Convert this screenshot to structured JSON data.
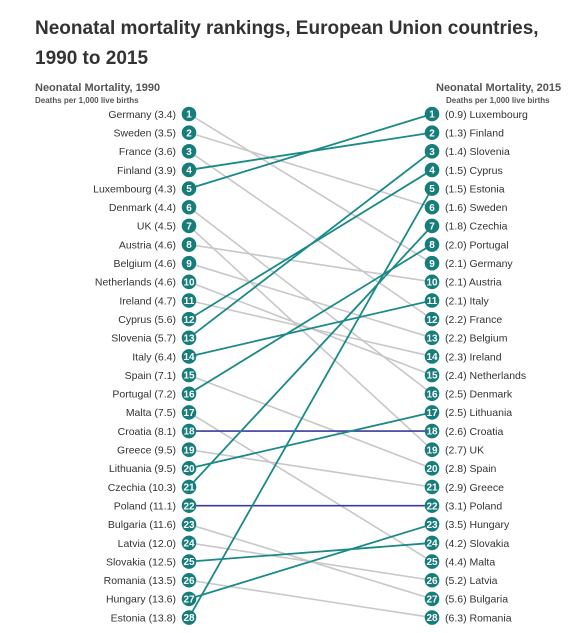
{
  "chart_data": {
    "type": "slope",
    "title": "Neonatal mortality rankings, European Union countries, 1990 to 2015",
    "left_axis": {
      "label": "Neonatal Mortality, 1990",
      "sublabel": "Deaths per 1,000 live births"
    },
    "right_axis": {
      "label": "Neonatal Mortality, 2015",
      "sublabel": "Deaths per 1,000 live births"
    },
    "colors": {
      "node": "#167d7a",
      "improved": "#1a8a86",
      "worsened": "#c8c8c8",
      "unchanged": "#3c3c9c"
    },
    "left": [
      {
        "rank": 1,
        "country": "Germany",
        "value": 3.4,
        "label": "Germany (3.4)"
      },
      {
        "rank": 2,
        "country": "Sweden",
        "value": 3.5,
        "label": "Sweden (3.5)"
      },
      {
        "rank": 3,
        "country": "France",
        "value": 3.6,
        "label": "France (3.6)"
      },
      {
        "rank": 4,
        "country": "Finland",
        "value": 3.9,
        "label": "Finland (3.9)"
      },
      {
        "rank": 5,
        "country": "Luxembourg",
        "value": 4.3,
        "label": "Luxembourg (4.3)"
      },
      {
        "rank": 6,
        "country": "Denmark",
        "value": 4.4,
        "label": "Denmark (4.4)"
      },
      {
        "rank": 7,
        "country": "UK",
        "value": 4.5,
        "label": "UK (4.5)"
      },
      {
        "rank": 8,
        "country": "Austria",
        "value": 4.6,
        "label": "Austria (4.6)"
      },
      {
        "rank": 9,
        "country": "Belgium",
        "value": 4.6,
        "label": "Belgium (4.6)"
      },
      {
        "rank": 10,
        "country": "Netherlands",
        "value": 4.6,
        "label": "Netherlands (4.6)"
      },
      {
        "rank": 11,
        "country": "Ireland",
        "value": 4.7,
        "label": "Ireland (4.7)"
      },
      {
        "rank": 12,
        "country": "Cyprus",
        "value": 5.6,
        "label": "Cyprus (5.6)"
      },
      {
        "rank": 13,
        "country": "Slovenia",
        "value": 5.7,
        "label": "Slovenia (5.7)"
      },
      {
        "rank": 14,
        "country": "Italy",
        "value": 6.4,
        "label": "Italy (6.4)"
      },
      {
        "rank": 15,
        "country": "Spain",
        "value": 7.1,
        "label": "Spain (7.1)"
      },
      {
        "rank": 16,
        "country": "Portugal",
        "value": 7.2,
        "label": "Portugal (7.2)"
      },
      {
        "rank": 17,
        "country": "Malta",
        "value": 7.5,
        "label": "Malta (7.5)"
      },
      {
        "rank": 18,
        "country": "Croatia",
        "value": 8.1,
        "label": "Croatia (8.1)"
      },
      {
        "rank": 19,
        "country": "Greece",
        "value": 9.5,
        "label": "Greece (9.5)"
      },
      {
        "rank": 20,
        "country": "Lithuania",
        "value": 9.5,
        "label": "Lithuania (9.5)"
      },
      {
        "rank": 21,
        "country": "Czechia",
        "value": 10.3,
        "label": "Czechia (10.3)"
      },
      {
        "rank": 22,
        "country": "Poland",
        "value": 11.1,
        "label": "Poland (11.1)"
      },
      {
        "rank": 23,
        "country": "Bulgaria",
        "value": 11.6,
        "label": "Bulgaria (11.6)"
      },
      {
        "rank": 24,
        "country": "Latvia",
        "value": 12.0,
        "label": "Latvia (12.0)"
      },
      {
        "rank": 25,
        "country": "Slovakia",
        "value": 12.5,
        "label": "Slovakia (12.5)"
      },
      {
        "rank": 26,
        "country": "Romania",
        "value": 13.5,
        "label": "Romania (13.5)"
      },
      {
        "rank": 27,
        "country": "Hungary",
        "value": 13.6,
        "label": "Hungary (13.6)"
      },
      {
        "rank": 28,
        "country": "Estonia",
        "value": 13.8,
        "label": "Estonia (13.8)"
      }
    ],
    "right": [
      {
        "rank": 1,
        "country": "Luxembourg",
        "value": 0.9,
        "label": "(0.9) Luxembourg"
      },
      {
        "rank": 2,
        "country": "Finland",
        "value": 1.3,
        "label": "(1.3) Finland"
      },
      {
        "rank": 3,
        "country": "Slovenia",
        "value": 1.4,
        "label": "(1.4) Slovenia"
      },
      {
        "rank": 4,
        "country": "Cyprus",
        "value": 1.5,
        "label": "(1.5) Cyprus"
      },
      {
        "rank": 5,
        "country": "Estonia",
        "value": 1.5,
        "label": "(1.5) Estonia"
      },
      {
        "rank": 6,
        "country": "Sweden",
        "value": 1.6,
        "label": "(1.6) Sweden"
      },
      {
        "rank": 7,
        "country": "Czechia",
        "value": 1.8,
        "label": "(1.8) Czechia"
      },
      {
        "rank": 8,
        "country": "Portugal",
        "value": 2.0,
        "label": "(2.0) Portugal"
      },
      {
        "rank": 9,
        "country": "Germany",
        "value": 2.1,
        "label": "(2.1) Germany"
      },
      {
        "rank": 10,
        "country": "Austria",
        "value": 2.1,
        "label": "(2.1) Austria"
      },
      {
        "rank": 11,
        "country": "Italy",
        "value": 2.1,
        "label": "(2.1) Italy"
      },
      {
        "rank": 12,
        "country": "France",
        "value": 2.2,
        "label": "(2.2) France"
      },
      {
        "rank": 13,
        "country": "Belgium",
        "value": 2.2,
        "label": "(2.2) Belgium"
      },
      {
        "rank": 14,
        "country": "Ireland",
        "value": 2.3,
        "label": "(2.3) Ireland"
      },
      {
        "rank": 15,
        "country": "Netherlands",
        "value": 2.4,
        "label": "(2.4) Netherlands"
      },
      {
        "rank": 16,
        "country": "Denmark",
        "value": 2.5,
        "label": "(2.5) Denmark"
      },
      {
        "rank": 17,
        "country": "Lithuania",
        "value": 2.5,
        "label": "(2.5) Lithuania"
      },
      {
        "rank": 18,
        "country": "Croatia",
        "value": 2.6,
        "label": "(2.6) Croatia"
      },
      {
        "rank": 19,
        "country": "UK",
        "value": 2.7,
        "label": "(2.7) UK"
      },
      {
        "rank": 20,
        "country": "Spain",
        "value": 2.8,
        "label": "(2.8) Spain"
      },
      {
        "rank": 21,
        "country": "Greece",
        "value": 2.9,
        "label": "(2.9) Greece"
      },
      {
        "rank": 22,
        "country": "Poland",
        "value": 3.1,
        "label": "(3.1) Poland"
      },
      {
        "rank": 23,
        "country": "Hungary",
        "value": 3.5,
        "label": "(3.5) Hungary"
      },
      {
        "rank": 24,
        "country": "Slovakia",
        "value": 4.2,
        "label": "(4.2) Slovakia"
      },
      {
        "rank": 25,
        "country": "Malta",
        "value": 4.4,
        "label": "(4.4) Malta"
      },
      {
        "rank": 26,
        "country": "Latvia",
        "value": 5.2,
        "label": "(5.2) Latvia"
      },
      {
        "rank": 27,
        "country": "Bulgaria",
        "value": 5.6,
        "label": "(5.6) Bulgaria"
      },
      {
        "rank": 28,
        "country": "Romania",
        "value": 6.3,
        "label": "(6.3) Romania"
      }
    ]
  }
}
